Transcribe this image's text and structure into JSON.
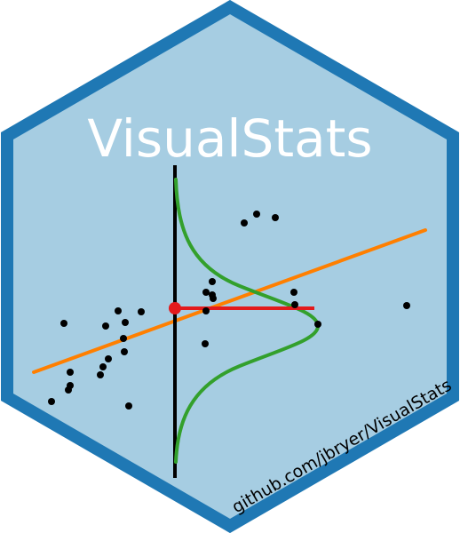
{
  "sticker": {
    "title": "VisualStats",
    "url": "github.com/jbryer/VisualStats"
  },
  "colors": {
    "hex_fill": "#a6cde2",
    "hex_border": "#1f78b4",
    "title": "#ffffff",
    "axis_line": "#000000",
    "regression_line": "#ff7f00",
    "normal_curve": "#33a02c",
    "residual": "#e31a1c",
    "points": "#000000",
    "url_text": "#000000"
  },
  "icons": {
    "logo": "hex-sticker-logo",
    "scatter": "scatter-points",
    "regression": "regression-line",
    "distribution": "normal-curve"
  }
}
